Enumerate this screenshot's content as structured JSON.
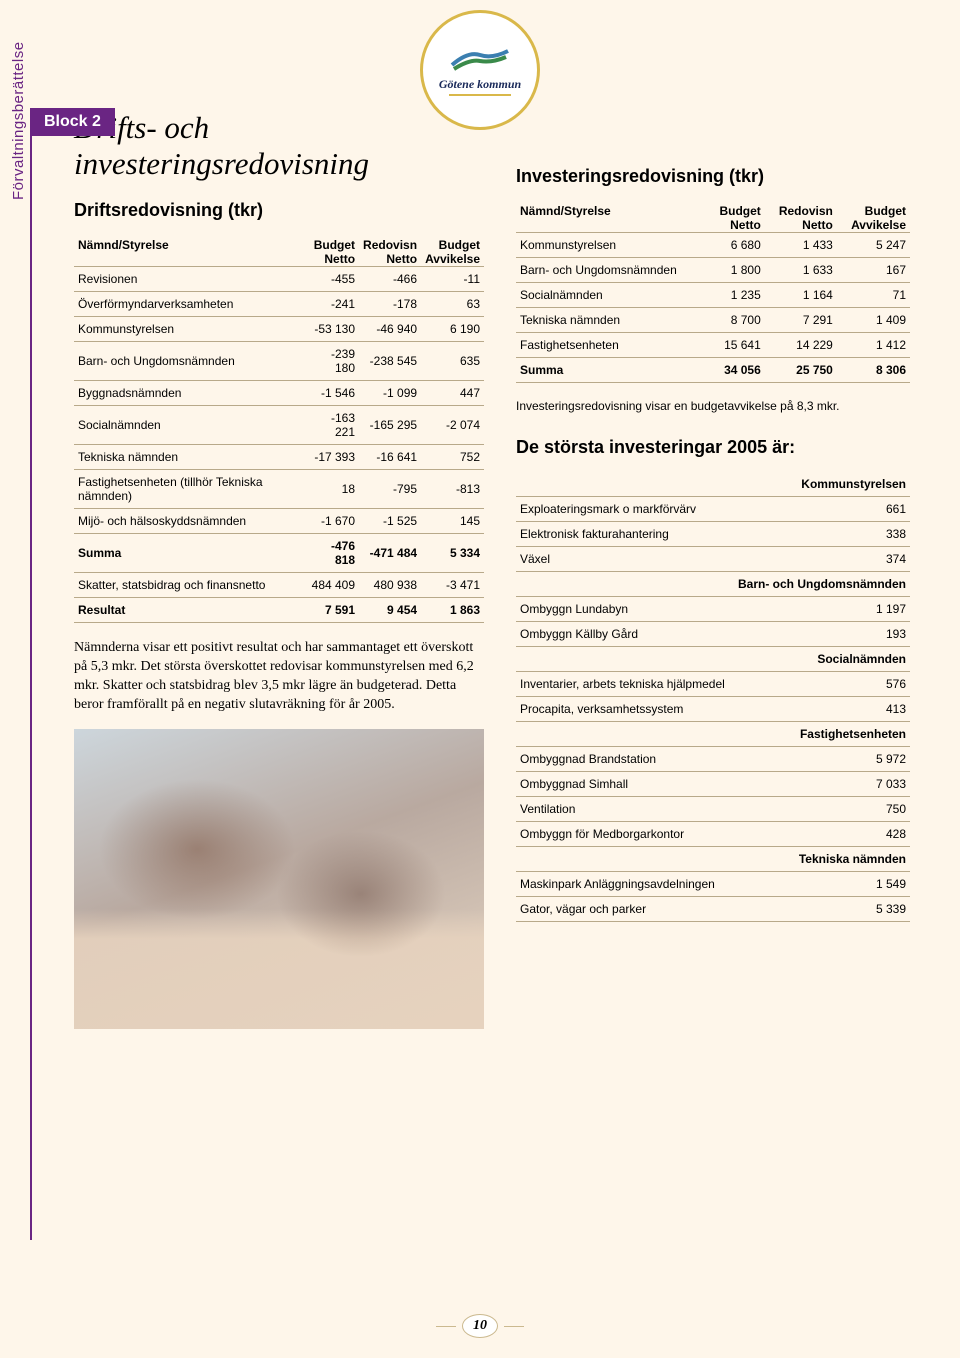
{
  "logo": {
    "name": "Götene kommun"
  },
  "block_label": "Block 2",
  "sidebar_label": "Förvaltningsberättelse",
  "main_title": "Drifts- och investeringsredovisning",
  "left": {
    "title": "Driftsredovisning (tkr)",
    "headers": {
      "c0": "Nämnd/Styrelse",
      "c1": "Budget",
      "c2": "Redovisn",
      "c3": "Budget",
      "s1": "Netto",
      "s2": "Netto",
      "s3": "Avvikelse"
    },
    "rows": [
      {
        "label": "Revisionen",
        "v1": "-455",
        "v2": "-466",
        "v3": "-11"
      },
      {
        "label": "Överförmyndarverksamheten",
        "v1": "-241",
        "v2": "-178",
        "v3": "63"
      },
      {
        "label": "Kommunstyrelsen",
        "v1": "-53 130",
        "v2": "-46 940",
        "v3": "6 190"
      },
      {
        "label": "Barn- och Ungdomsnämnden",
        "v1": "-239 180",
        "v2": "-238 545",
        "v3": "635"
      },
      {
        "label": "Byggnadsnämnden",
        "v1": "-1 546",
        "v2": "-1 099",
        "v3": "447"
      },
      {
        "label": "Socialnämnden",
        "v1": "-163 221",
        "v2": "-165 295",
        "v3": "-2 074"
      },
      {
        "label": "Tekniska nämnden",
        "v1": "-17 393",
        "v2": "-16 641",
        "v3": "752"
      },
      {
        "label": "Fastighetsenheten (tillhör Tekniska nämnden)",
        "v1": "18",
        "v2": "-795",
        "v3": "-813"
      },
      {
        "label": "Mijö- och hälsoskyddsnämnden",
        "v1": "-1 670",
        "v2": "-1 525",
        "v3": "145"
      },
      {
        "label": "Summa",
        "v1": "-476 818",
        "v2": "-471 484",
        "v3": "5 334",
        "bold": true
      },
      {
        "label": "Skatter, statsbidrag och finansnetto",
        "v1": "484 409",
        "v2": "480 938",
        "v3": "-3 471"
      },
      {
        "label": "Resultat",
        "v1": "7 591",
        "v2": "9 454",
        "v3": "1 863",
        "bold": true
      }
    ],
    "body_text": "Nämnderna visar ett positivt resultat och har sammantaget ett överskott på 5,3 mkr. Det största överskottet redovisar kommunstyrelsen med 6,2 mkr. Skatter och statsbidrag blev 3,5 mkr lägre än budgeterad. Detta beror framförallt på en negativ slutavräkning för år 2005."
  },
  "right": {
    "title": "Investeringsredovisning (tkr)",
    "headers": {
      "c0": "Nämnd/Styrelse",
      "c1": "Budget",
      "c2": "Redovisn",
      "c3": "Budget",
      "s1": "Netto",
      "s2": "Netto",
      "s3": "Avvikelse"
    },
    "rows": [
      {
        "label": "Kommunstyrelsen",
        "v1": "6 680",
        "v2": "1 433",
        "v3": "5 247"
      },
      {
        "label": "Barn- och Ungdomsnämnden",
        "v1": "1 800",
        "v2": "1 633",
        "v3": "167"
      },
      {
        "label": "Socialnämnden",
        "v1": "1 235",
        "v2": "1 164",
        "v3": "71"
      },
      {
        "label": "Tekniska nämnden",
        "v1": "8 700",
        "v2": "7 291",
        "v3": "1 409"
      },
      {
        "label": "Fastighetsenheten",
        "v1": "15 641",
        "v2": "14 229",
        "v3": "1 412"
      },
      {
        "label": "Summa",
        "v1": "34 056",
        "v2": "25 750",
        "v3": "8 306",
        "bold": true
      }
    ],
    "note": "Investeringsredovisning visar en budgetavvikelse på 8,3 mkr.",
    "big_sub": "De största investeringar 2005 är:",
    "list": [
      {
        "cat": "Kommunstyrelsen"
      },
      {
        "label": "Exploateringsmark o markförvärv",
        "val": "661"
      },
      {
        "label": "Elektronisk fakturahantering",
        "val": "338"
      },
      {
        "label": "Växel",
        "val": "374"
      },
      {
        "cat": "Barn- och Ungdomsnämnden"
      },
      {
        "label": "Ombyggn Lundabyn",
        "val": "1 197"
      },
      {
        "label": "Ombyggn Källby Gård",
        "val": "193"
      },
      {
        "cat": "Socialnämnden"
      },
      {
        "label": "Inventarier, arbets tekniska hjälpmedel",
        "val": "576"
      },
      {
        "label": "Procapita, verksamhetssystem",
        "val": "413"
      },
      {
        "cat": "Fastighetsenheten"
      },
      {
        "label": "Ombyggnad Brandstation",
        "val": "5 972"
      },
      {
        "label": "Ombyggnad Simhall",
        "val": "7 033"
      },
      {
        "label": "Ventilation",
        "val": "750"
      },
      {
        "label": "Ombyggn för Medborgarkontor",
        "val": "428"
      },
      {
        "cat": "Tekniska nämnden"
      },
      {
        "label": "Maskinpark Anläggningsavdelningen",
        "val": "1 549"
      },
      {
        "label": "Gator, vägar och parker",
        "val": "5 339"
      }
    ]
  },
  "page_number": "10",
  "colors": {
    "page_bg": "#fef6ea",
    "accent_purple": "#6a2583",
    "rule": "#b8a98a",
    "logo_border": "#d9b84a"
  }
}
